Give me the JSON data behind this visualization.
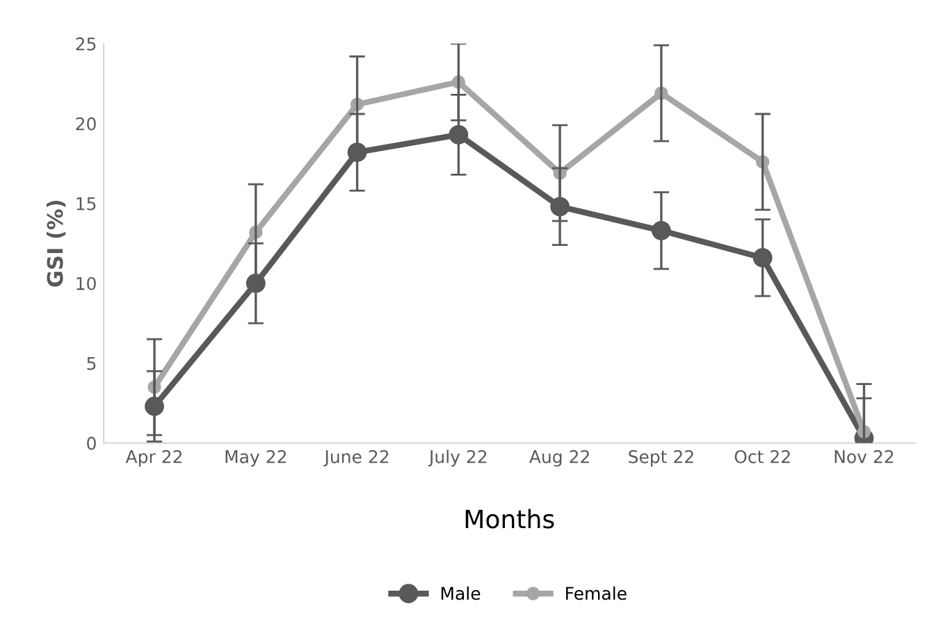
{
  "chart_data": {
    "type": "line",
    "xlabel": "Months",
    "ylabel": "GSI (%)",
    "categories": [
      "Apr 22",
      "May 22",
      "June 22",
      "July 22",
      "Aug 22",
      "Sept 22",
      "Oct 22",
      "Nov 22"
    ],
    "series": [
      {
        "name": "Male",
        "color": "#595959",
        "values": [
          2.3,
          10.0,
          18.2,
          19.3,
          14.8,
          13.3,
          11.6,
          0.3
        ],
        "errors": [
          2.2,
          2.5,
          2.4,
          2.5,
          2.4,
          2.4,
          2.4,
          2.5
        ]
      },
      {
        "name": "Female",
        "color": "#a6a6a6",
        "values": [
          3.5,
          13.2,
          21.2,
          22.6,
          16.9,
          21.9,
          17.6,
          0.7
        ],
        "errors": [
          3.0,
          3.0,
          3.0,
          2.4,
          3.0,
          3.0,
          3.0,
          3.0
        ]
      }
    ],
    "ylim": [
      0,
      25
    ],
    "yticks": [
      0,
      5,
      10,
      15,
      20,
      25
    ],
    "grid": false,
    "legend": "bottom",
    "marker": "circle",
    "line_style": "solid"
  }
}
